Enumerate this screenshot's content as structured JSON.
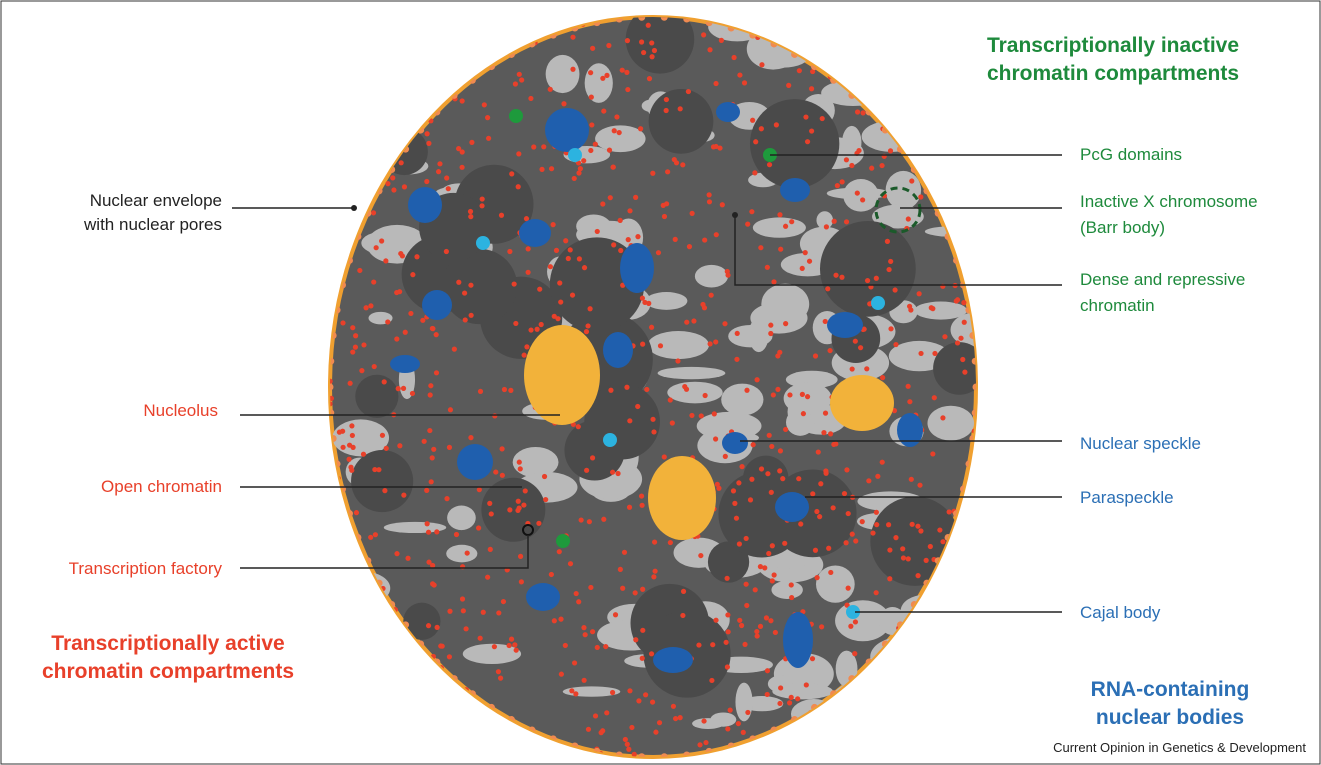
{
  "headings": {
    "inactive": [
      "Transcriptionally inactive",
      "chromatin compartments"
    ],
    "active": [
      "Transcriptionally active",
      "chromatin compartments"
    ],
    "rna": [
      "RNA-containing",
      "nuclear bodies"
    ]
  },
  "labels": {
    "envelope": [
      "Nuclear envelope",
      "with nuclear pores"
    ],
    "nucleolus": [
      "Nucleolus"
    ],
    "open": [
      "Open chromatin"
    ],
    "factory": [
      "Transcription factory"
    ],
    "pcg": [
      "PcG domains"
    ],
    "xchrom": [
      "Inactive X chromosome",
      "(Barr body)"
    ],
    "dense": [
      "Dense and repressive",
      "chromatin"
    ],
    "speckle": [
      "Nuclear speckle"
    ],
    "paraspeckle": [
      "Paraspeckle"
    ],
    "cajal": [
      "Cajal body"
    ]
  },
  "credit": "Current Opinion in Genetics & Development"
}
